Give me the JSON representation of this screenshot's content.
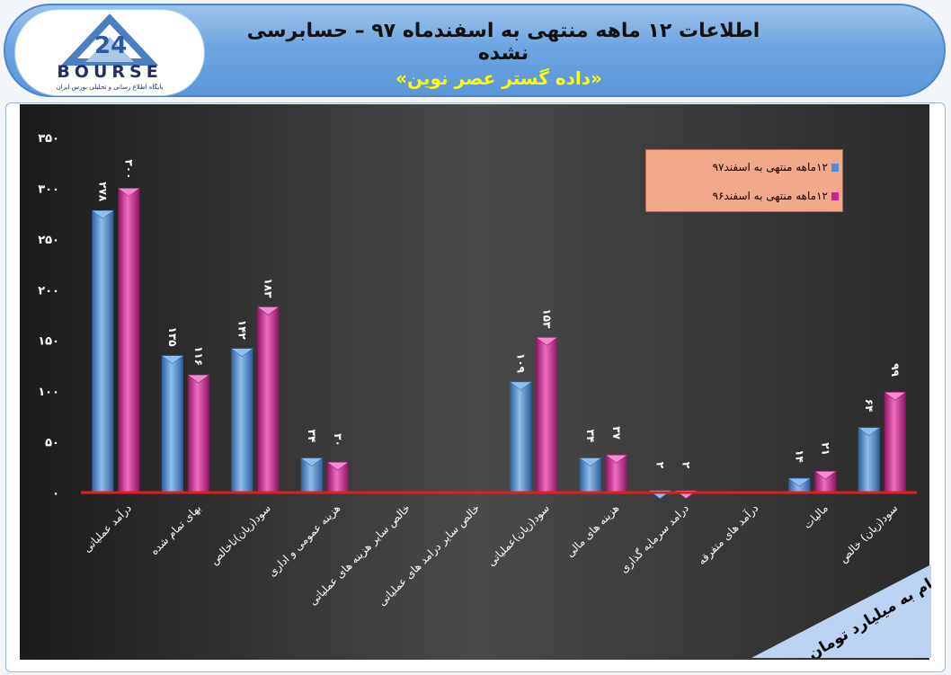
{
  "header": {
    "title": "اطلاعات ۱۲ ماهه منتهی به اسفندماه ۹۷ – حسابرسی نشده",
    "subtitle": "«داده گستر عصر نوین»"
  },
  "logo": {
    "brand": "BOURSE",
    "sub": "پایگاه اطلاع رسانی و تحلیلی بورس ایران",
    "mark": "24"
  },
  "unit_note": "ارقام به میلیارد تومان",
  "colors": {
    "series1": "#4f8fd0",
    "series2": "#c8268f",
    "baseline": "#e02020",
    "legend_bg": "#f4a88a"
  },
  "chart_data": {
    "type": "bar",
    "categories": [
      "درآمد عملیاتی",
      "بهای تمام شده",
      "سود(زیان)ناخالص",
      "هزینه عمومی و اداری",
      "خالص سایر هزینه های عملیاتی",
      "خالص سایر درامد های عملیاتی",
      "سود(زیان)عملیاتی",
      "هزینه های مالی",
      "درامد سرمایه گذاری",
      "درآمد های متفرقه",
      "مالیات",
      "سود(زیان) خالص"
    ],
    "series": [
      {
        "name": "۱۲ماهه منتهی به اسفند۹۷",
        "values": [
          278,
          135,
          142,
          34,
          0,
          0,
          109,
          34,
          2,
          0,
          14,
          64
        ],
        "labels": [
          "۲۷۸",
          "۱۳۵",
          "۱۴۲",
          "۳۴",
          "",
          "",
          "۱۰۹",
          "۳۴",
          "۲",
          "",
          "۱۴",
          "۶۴"
        ]
      },
      {
        "name": "۱۲ماهه منتهی به اسفند۹۶",
        "values": [
          300,
          116,
          183,
          30,
          0,
          0,
          153,
          37,
          2,
          0,
          21,
          99
        ],
        "labels": [
          "۳۰۰",
          "۱۱۶",
          "۱۸۳",
          "۳۰",
          "",
          "",
          "۱۵۳",
          "۳۷",
          "۲",
          "",
          "۲۱",
          "۹۹"
        ]
      }
    ],
    "ylim": [
      0,
      350
    ],
    "yticks": [
      0,
      50,
      100,
      150,
      200,
      250,
      300,
      350
    ],
    "ytick_labels": [
      "۰",
      "۵۰",
      "۱۰۰",
      "۱۵۰",
      "۲۰۰",
      "۲۵۰",
      "۳۰۰",
      "۳۵۰"
    ],
    "legend_position": "top-right",
    "grid": false
  }
}
